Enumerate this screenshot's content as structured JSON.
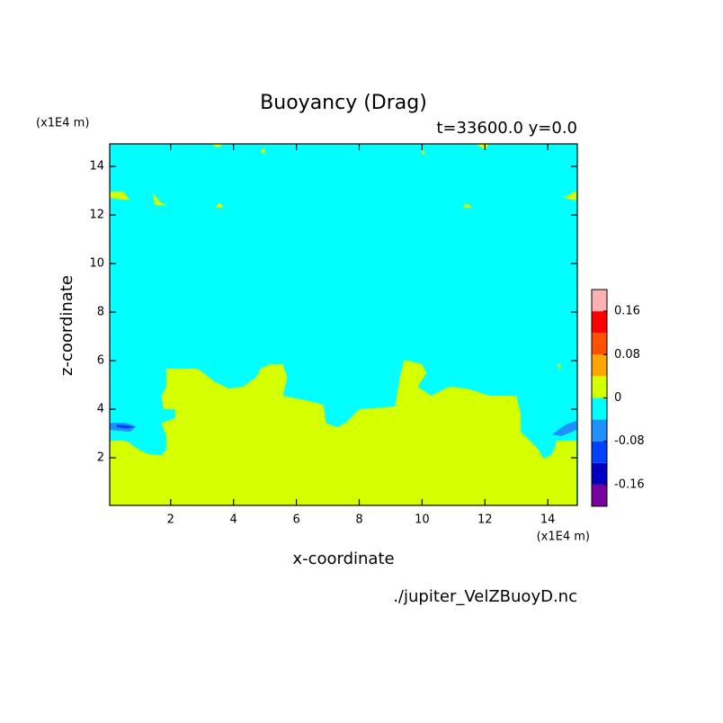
{
  "chart_data": {
    "type": "contour",
    "title": "Buoyancy (Drag)",
    "subtitle": "t=33600.0 y=0.0",
    "x_label": "x-coordinate",
    "y_label": "z-coordinate",
    "x_unit": "(x1E4 m)",
    "y_unit": "(x1E4 m)",
    "footer": "./jupiter_VelZBuoyD.nc",
    "xlim": [
      0.06,
      14.94
    ],
    "ylim": [
      0.04,
      14.93
    ],
    "xticks": [
      2,
      4,
      6,
      8,
      10,
      12,
      14
    ],
    "yticks": [
      2,
      4,
      6,
      8,
      10,
      12,
      14
    ],
    "background_color": "#00ffff",
    "regions": [
      {
        "color": "#d4ff00",
        "x": [
          0.06,
          0.57,
          1.0,
          1.29,
          1.71,
          1.86,
          1.86,
          1.71,
          2.14,
          2.14,
          1.77,
          1.71,
          1.86,
          1.86,
          2.86,
          3.43,
          3.86,
          4.29,
          4.71,
          4.86,
          5.14,
          5.57,
          5.71,
          5.57,
          6.29,
          6.86,
          6.94,
          7.29,
          7.57,
          8.0,
          9.14,
          9.29,
          9.43,
          10.0,
          10.14,
          9.86,
          10.29,
          10.86,
          11.43,
          12.14,
          13.0,
          13.14,
          13.14,
          13.43,
          13.71,
          13.86,
          14.14,
          14.29,
          14.91,
          14.91,
          0.06
        ],
        "z": [
          2.7,
          2.7,
          2.33,
          2.15,
          2.11,
          2.33,
          2.89,
          3.44,
          3.63,
          4.0,
          4.0,
          4.56,
          4.93,
          5.67,
          5.67,
          5.11,
          4.85,
          4.93,
          5.3,
          5.67,
          5.85,
          5.85,
          5.3,
          4.56,
          4.37,
          4.19,
          3.44,
          3.26,
          3.44,
          4.0,
          4.11,
          5.3,
          6.04,
          5.85,
          5.48,
          4.93,
          4.56,
          4.93,
          4.85,
          4.56,
          4.56,
          3.81,
          3.07,
          2.7,
          2.33,
          1.96,
          2.15,
          2.7,
          2.7,
          0.04,
          0.04
        ]
      },
      {
        "color": "#1e90ff",
        "x": [
          0.06,
          0.57,
          0.91,
          0.71,
          0.06
        ],
        "z": [
          3.44,
          3.44,
          3.3,
          3.07,
          3.15
        ]
      },
      {
        "color": "#0040ff",
        "x": [
          0.29,
          0.63,
          0.86,
          0.6,
          0.29
        ],
        "z": [
          3.37,
          3.33,
          3.26,
          3.2,
          3.26
        ]
      },
      {
        "color": "#1e90ff",
        "x": [
          14.14,
          14.57,
          14.91,
          14.91,
          14.43
        ],
        "z": [
          2.96,
          3.37,
          3.52,
          3.15,
          2.89
        ]
      },
      {
        "color": "#d4ff00",
        "x": [
          3.29,
          3.71,
          3.5
        ],
        "z": [
          14.93,
          14.93,
          14.78
        ]
      },
      {
        "color": "#d4ff00",
        "x": [
          4.86,
          5.0,
          5.0
        ],
        "z": [
          14.6,
          14.8,
          14.5
        ]
      },
      {
        "color": "#d4ff00",
        "x": [
          10.0,
          10.0,
          10.1
        ],
        "z": [
          14.5,
          14.8,
          14.5
        ]
      },
      {
        "color": "#d4ff00",
        "x": [
          11.71,
          12.14,
          12.0
        ],
        "z": [
          14.93,
          14.93,
          14.7
        ]
      },
      {
        "color": "#d4ff00",
        "x": [
          0.06,
          0.5,
          0.7,
          0.06
        ],
        "z": [
          12.96,
          12.96,
          12.6,
          12.7
        ]
      },
      {
        "color": "#d4ff00",
        "x": [
          1.43,
          1.7,
          1.9,
          1.5
        ],
        "z": [
          12.9,
          12.5,
          12.4,
          12.4
        ]
      },
      {
        "color": "#d4ff00",
        "x": [
          3.55,
          3.7,
          3.4
        ],
        "z": [
          12.5,
          12.3,
          12.3
        ]
      },
      {
        "color": "#d4ff00",
        "x": [
          11.3,
          11.4,
          11.6
        ],
        "z": [
          12.3,
          12.5,
          12.3
        ]
      },
      {
        "color": "#d4ff00",
        "x": [
          14.5,
          14.91,
          14.91
        ],
        "z": [
          12.7,
          13.0,
          12.6
        ]
      },
      {
        "color": "#d4ff00",
        "x": [
          14.3,
          14.4,
          14.4
        ],
        "z": [
          5.8,
          5.6,
          5.9
        ]
      }
    ],
    "levels": [
      -0.2,
      -0.16,
      -0.12,
      -0.08,
      -0.04,
      0,
      0.04,
      0.08,
      0.12,
      0.16,
      0.2
    ],
    "level_colors": [
      "#7a00a0",
      "#0000c0",
      "#0040ff",
      "#1e90ff",
      "#00ffff",
      "#d4ff00",
      "#ffa500",
      "#ff5000",
      "#ff0000",
      "#ffb0b0"
    ],
    "colorbar_ticks": [
      -0.16,
      -0.08,
      0,
      0.08,
      0.16
    ]
  }
}
